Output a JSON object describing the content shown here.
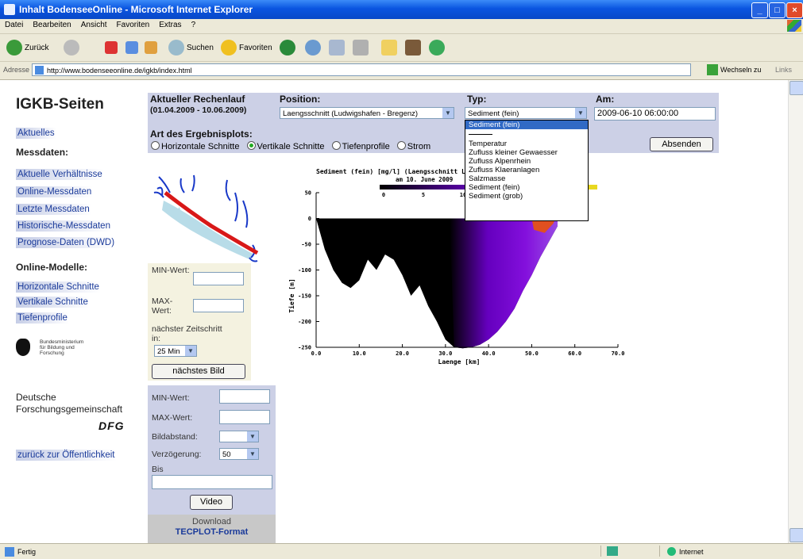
{
  "window": {
    "title": "Inhalt BodenseeOnline - Microsoft Internet Explorer"
  },
  "menu": [
    "Datei",
    "Bearbeiten",
    "Ansicht",
    "Favoriten",
    "Extras",
    "?"
  ],
  "toolbar": {
    "back_label": "Zurück",
    "search_label": "Suchen",
    "favorites_label": "Favoriten"
  },
  "address": {
    "label": "Adresse",
    "url": "http://www.bodenseeonline.de/igkb/index.html",
    "go_label": "Wechseln zu",
    "links_label": "Links"
  },
  "status": {
    "text": "Fertig",
    "zone": "Internet"
  },
  "sidebar": {
    "title": "IGKB-Seiten",
    "aktuelles": "Aktuelles",
    "messdaten_heading": "Messdaten:",
    "messdaten": [
      "Aktuelle Verhältnisse",
      "Online-Messdaten",
      "Letzte Messdaten",
      "Historische-Messdaten",
      "Prognose-Daten (DWD)"
    ],
    "modelle_heading": "Online-Modelle:",
    "modelle": [
      "Horizontale Schnitte",
      "Vertikale Schnitte",
      "Tiefenprofile"
    ],
    "bmbf_text": "Bundesministerium für Bildung und Forschung",
    "dfg_org": "Deutsche Forschungsgemeinschaft",
    "dfg_logo": "DFG",
    "back_link": "zurück zur Öffentlichkeit"
  },
  "form": {
    "rechenlauf_label": "Aktueller Rechenlauf",
    "rechenlauf_range": "(01.04.2009 - 10.06.2009)",
    "position_label": "Position:",
    "position_value": "Laengsschnitt (Ludwigshafen - Bregenz)",
    "typ_label": "Typ:",
    "typ_value": "Sediment (fein)",
    "am_label": "Am:",
    "am_value": "2009-06-10 06:00:00",
    "art_label": "Art des Ergebnisplots:",
    "radio_options": [
      "Horizontale Schnitte",
      "Vertikale Schnitte",
      "Tiefenprofile",
      "Strom"
    ],
    "radio_selected": 1,
    "submit_label": "Absenden"
  },
  "typ_dropdown": {
    "options": [
      "Sediment (fein)",
      "",
      "Temperatur",
      "Zufluss kleiner Gewaesser",
      "Zufluss Alpenrhein",
      "Zufluss Klaeranlagen",
      "Salzmasse",
      "Sediment (fein)",
      "Sediment (grob)"
    ],
    "highlighted": 0
  },
  "panel_a": {
    "min_label": "MIN-Wert:",
    "max_label": "MAX-Wert:",
    "next_step_label": "nächster Zeitschritt in:",
    "interval_value": "25 Min",
    "next_image_button": "nächstes Bild"
  },
  "panel_b": {
    "min_label": "MIN-Wert:",
    "max_label": "MAX-Wert:",
    "bildabstand_label": "Bildabstand:",
    "verzoegerung_label": "Verzögerung:",
    "verzoegerung_value": "50",
    "bis_label": "Bis",
    "video_button": "Video"
  },
  "download": {
    "line1": "Download",
    "line2": "TECPLOT-Format"
  },
  "colors": {
    "panel_blue": "#ccd0e6",
    "panel_cream": "#f4f2e0",
    "link_blue": "#1a3a9a",
    "plot_purple": "#7a00d8",
    "river_red": "#d81818"
  },
  "chart_data": {
    "type": "heatmap",
    "title": "Sediment (fein) [mg/l] (Laengsschnitt Ludwigshafen - Bregenz)",
    "subtitle": "am 10. June 2009",
    "xlabel": "Laenge [km]",
    "ylabel": "Tiefe [m]",
    "x_ticks": [
      "0.0",
      "10.0",
      "20.0",
      "30.0",
      "40.0",
      "50.0",
      "60.0",
      "70.0"
    ],
    "y_ticks": [
      "50",
      "0",
      "-50",
      "-100",
      "-150",
      "-200",
      "-250"
    ],
    "xlim": [
      0,
      70
    ],
    "ylim": [
      -250,
      50
    ],
    "colorbar_ticks": [
      "0",
      "5",
      "10"
    ],
    "bed_profile": {
      "x": [
        0,
        2,
        4,
        6,
        8,
        10,
        12,
        14,
        16,
        18,
        20,
        22,
        24,
        26,
        28,
        30,
        32,
        34,
        36,
        38,
        40,
        42,
        44,
        46,
        48,
        50,
        52,
        54,
        56
      ],
      "y": [
        0,
        -60,
        -100,
        -125,
        -135,
        -120,
        -80,
        -100,
        -70,
        -80,
        -110,
        -150,
        -130,
        -170,
        -200,
        -235,
        -250,
        -252,
        -250,
        -245,
        -235,
        -220,
        -200,
        -175,
        -140,
        -110,
        -75,
        -45,
        -15
      ]
    },
    "plume_start_km": 31
  }
}
